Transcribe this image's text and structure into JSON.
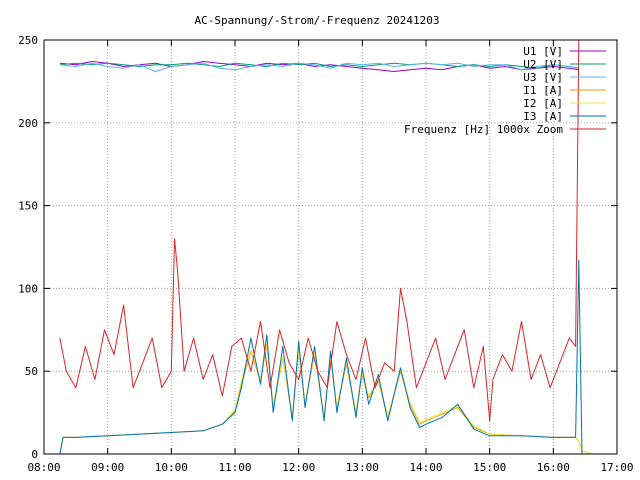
{
  "chart_data": {
    "type": "line",
    "title": "AC-Spannung/-Strom/-Frequenz 20241203",
    "xlabel": "",
    "ylabel": "",
    "xlim": [
      8.0,
      17.0
    ],
    "ylim": [
      0,
      250
    ],
    "x_tick_values": [
      8,
      9,
      10,
      11,
      12,
      13,
      14,
      15,
      16,
      17
    ],
    "x_tick_labels": [
      "08:00",
      "09:00",
      "10:00",
      "11:00",
      "12:00",
      "13:00",
      "14:00",
      "15:00",
      "16:00",
      "17:00"
    ],
    "y_ticks": [
      0,
      50,
      100,
      150,
      200,
      250
    ],
    "grid": true,
    "legend_position": "top-right",
    "series": [
      {
        "name": "U1 [V]",
        "color": "#9400d3",
        "x": [
          8.25,
          8.5,
          8.75,
          9.0,
          9.25,
          9.5,
          9.75,
          10.0,
          10.25,
          10.5,
          10.75,
          11.0,
          11.25,
          11.5,
          11.75,
          12.0,
          12.25,
          12.5,
          12.75,
          13.0,
          13.25,
          13.5,
          13.75,
          14.0,
          14.25,
          14.5,
          14.75,
          15.0,
          15.25,
          15.5,
          15.75,
          16.0,
          16.25,
          16.4
        ],
        "y": [
          236,
          235,
          237,
          236,
          234,
          235,
          236,
          234,
          235,
          237,
          236,
          235,
          234,
          236,
          235,
          236,
          234,
          235,
          234,
          233,
          232,
          231,
          232,
          233,
          232,
          234,
          235,
          233,
          234,
          232,
          233,
          234,
          233,
          232
        ]
      },
      {
        "name": "U2 [V]",
        "color": "#009e73",
        "x": [
          8.25,
          8.5,
          8.75,
          9.0,
          9.25,
          9.5,
          9.75,
          10.0,
          10.25,
          10.5,
          10.75,
          11.0,
          11.25,
          11.5,
          11.75,
          12.0,
          12.25,
          12.5,
          12.75,
          13.0,
          13.25,
          13.5,
          13.75,
          14.0,
          14.25,
          14.5,
          14.75,
          15.0,
          15.25,
          15.5,
          15.75,
          16.0,
          16.25,
          16.4
        ],
        "y": [
          235,
          236,
          235,
          236,
          235,
          234,
          235,
          235,
          236,
          235,
          234,
          236,
          235,
          234,
          236,
          235,
          236,
          234,
          235,
          234,
          235,
          236,
          235,
          236,
          235,
          234,
          235,
          234,
          235,
          234,
          233,
          235,
          234,
          233
        ]
      },
      {
        "name": "U3 [V]",
        "color": "#56b4e9",
        "x": [
          8.25,
          8.5,
          8.75,
          9.0,
          9.25,
          9.5,
          9.75,
          10.0,
          10.25,
          10.5,
          10.75,
          11.0,
          11.25,
          11.5,
          11.75,
          12.0,
          12.25,
          12.5,
          12.75,
          13.0,
          13.25,
          13.5,
          13.75,
          14.0,
          14.25,
          14.5,
          14.75,
          15.0,
          15.25,
          15.5,
          15.75,
          16.0,
          16.25,
          16.4
        ],
        "y": [
          235,
          234,
          236,
          234,
          233,
          235,
          231,
          234,
          235,
          236,
          233,
          232,
          234,
          235,
          234,
          236,
          235,
          233,
          236,
          235,
          236,
          234,
          235,
          236,
          235,
          236,
          234,
          235,
          235,
          232,
          234,
          235,
          234,
          233
        ]
      },
      {
        "name": "I1 [A]",
        "color": "#e69f00",
        "x": [
          8.25,
          8.3,
          8.5,
          9.0,
          9.5,
          10.0,
          10.5,
          10.8,
          11.0,
          11.1,
          11.25,
          11.4,
          11.5,
          11.6,
          11.75,
          11.9,
          12.0,
          12.1,
          12.25,
          12.4,
          12.5,
          12.6,
          12.75,
          12.9,
          13.0,
          13.1,
          13.25,
          13.4,
          13.6,
          13.75,
          13.9,
          14.0,
          14.25,
          14.5,
          14.75,
          15.0,
          15.5,
          16.0,
          16.35,
          16.4,
          16.45,
          16.6
        ],
        "y": [
          0,
          10,
          10,
          11,
          12,
          13,
          14,
          18,
          26,
          42,
          62,
          44,
          66,
          28,
          58,
          22,
          62,
          30,
          60,
          22,
          58,
          28,
          54,
          25,
          48,
          34,
          44,
          22,
          50,
          30,
          18,
          20,
          24,
          28,
          16,
          12,
          11,
          10,
          10,
          8,
          2,
          0
        ]
      },
      {
        "name": "I2 [A]",
        "color": "#f0e442",
        "x": [
          8.25,
          8.3,
          8.5,
          9.0,
          9.5,
          10.0,
          10.5,
          10.8,
          11.0,
          11.1,
          11.25,
          11.4,
          11.5,
          11.6,
          11.75,
          11.9,
          12.0,
          12.1,
          12.25,
          12.4,
          12.5,
          12.6,
          12.75,
          12.9,
          13.0,
          13.1,
          13.25,
          13.4,
          13.6,
          13.75,
          13.9,
          14.0,
          14.25,
          14.5,
          14.75,
          15.0,
          15.5,
          16.0,
          16.35,
          16.4,
          16.45,
          16.6
        ],
        "y": [
          0,
          10,
          10,
          11,
          12,
          13,
          14,
          18,
          27,
          44,
          63,
          45,
          67,
          29,
          59,
          23,
          63,
          31,
          61,
          23,
          59,
          29,
          55,
          26,
          49,
          35,
          45,
          23,
          51,
          31,
          19,
          21,
          25,
          29,
          17,
          12,
          11,
          10,
          10,
          8,
          2,
          0
        ]
      },
      {
        "name": "I3 [A]",
        "color": "#0072b2",
        "x": [
          8.25,
          8.3,
          8.5,
          9.0,
          9.5,
          10.0,
          10.5,
          10.8,
          11.0,
          11.1,
          11.25,
          11.4,
          11.5,
          11.6,
          11.75,
          11.9,
          12.0,
          12.1,
          12.25,
          12.4,
          12.5,
          12.6,
          12.75,
          12.9,
          13.0,
          13.1,
          13.25,
          13.4,
          13.6,
          13.75,
          13.9,
          14.0,
          14.25,
          14.5,
          14.75,
          15.0,
          15.5,
          16.0,
          16.35,
          16.4,
          16.45,
          16.6
        ],
        "y": [
          0,
          10,
          10,
          11,
          12,
          13,
          14,
          18,
          25,
          40,
          70,
          42,
          72,
          25,
          65,
          20,
          68,
          28,
          65,
          20,
          62,
          25,
          58,
          22,
          52,
          30,
          48,
          20,
          52,
          28,
          16,
          18,
          22,
          30,
          15,
          11,
          11,
          10,
          10,
          117,
          0,
          0
        ]
      },
      {
        "name": "Frequenz [Hz] 1000x Zoom",
        "color": "#d62728",
        "x": [
          8.25,
          8.35,
          8.5,
          8.65,
          8.8,
          8.95,
          9.1,
          9.25,
          9.4,
          9.55,
          9.7,
          9.85,
          10.0,
          10.05,
          10.1,
          10.2,
          10.35,
          10.5,
          10.65,
          10.8,
          10.95,
          11.1,
          11.25,
          11.4,
          11.55,
          11.7,
          11.85,
          12.0,
          12.15,
          12.3,
          12.45,
          12.6,
          12.75,
          12.9,
          13.05,
          13.2,
          13.35,
          13.5,
          13.6,
          13.7,
          13.85,
          14.0,
          14.15,
          14.3,
          14.45,
          14.6,
          14.75,
          14.9,
          15.0,
          15.05,
          15.2,
          15.35,
          15.5,
          15.65,
          15.8,
          15.95,
          16.1,
          16.25,
          16.35,
          16.4,
          16.42
        ],
        "y": [
          70,
          50,
          40,
          65,
          45,
          75,
          60,
          90,
          40,
          55,
          70,
          40,
          50,
          130,
          110,
          50,
          70,
          45,
          60,
          35,
          65,
          70,
          50,
          80,
          40,
          75,
          55,
          45,
          70,
          50,
          40,
          80,
          60,
          45,
          70,
          40,
          55,
          50,
          100,
          80,
          40,
          55,
          70,
          45,
          60,
          75,
          40,
          65,
          20,
          45,
          60,
          50,
          80,
          45,
          60,
          40,
          55,
          70,
          65,
          250,
          250
        ]
      }
    ]
  }
}
